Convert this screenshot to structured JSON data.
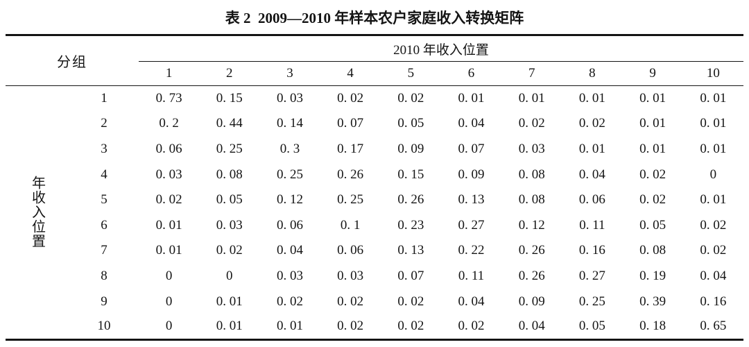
{
  "page": {
    "background": "#ffffff",
    "text_color": "#141414",
    "rule_color": "#141414"
  },
  "title": "表 2  2009—2010 年样本农户家庭收入转换矩阵",
  "table": {
    "group_header": "分组",
    "col_span_header": "2010 年收入位置",
    "row_axis_label": "年收入位置",
    "column_labels": [
      "1",
      "2",
      "3",
      "4",
      "5",
      "6",
      "7",
      "8",
      "9",
      "10"
    ],
    "rows": [
      {
        "label": "1",
        "values": [
          "0. 73",
          "0. 15",
          "0. 03",
          "0. 02",
          "0. 02",
          "0. 01",
          "0. 01",
          "0. 01",
          "0. 01",
          "0. 01"
        ]
      },
      {
        "label": "2",
        "values": [
          "0. 2",
          "0. 44",
          "0. 14",
          "0. 07",
          "0. 05",
          "0. 04",
          "0. 02",
          "0. 02",
          "0. 01",
          "0. 01"
        ]
      },
      {
        "label": "3",
        "values": [
          "0. 06",
          "0. 25",
          "0. 3",
          "0. 17",
          "0. 09",
          "0. 07",
          "0. 03",
          "0. 01",
          "0. 01",
          "0. 01"
        ]
      },
      {
        "label": "4",
        "values": [
          "0. 03",
          "0. 08",
          "0. 25",
          "0. 26",
          "0. 15",
          "0. 09",
          "0. 08",
          "0. 04",
          "0. 02",
          "0"
        ]
      },
      {
        "label": "5",
        "values": [
          "0. 02",
          "0. 05",
          "0. 12",
          "0. 25",
          "0. 26",
          "0. 13",
          "0. 08",
          "0. 06",
          "0. 02",
          "0. 01"
        ]
      },
      {
        "label": "6",
        "values": [
          "0. 01",
          "0. 03",
          "0. 06",
          "0. 1",
          "0. 23",
          "0. 27",
          "0. 12",
          "0. 11",
          "0. 05",
          "0. 02"
        ]
      },
      {
        "label": "7",
        "values": [
          "0. 01",
          "0. 02",
          "0. 04",
          "0. 06",
          "0. 13",
          "0. 22",
          "0. 26",
          "0. 16",
          "0. 08",
          "0. 02"
        ]
      },
      {
        "label": "8",
        "values": [
          "0",
          "0",
          "0. 03",
          "0. 03",
          "0. 07",
          "0. 11",
          "0. 26",
          "0. 27",
          "0. 19",
          "0. 04"
        ]
      },
      {
        "label": "9",
        "values": [
          "0",
          "0. 01",
          "0. 02",
          "0. 02",
          "0. 02",
          "0. 04",
          "0. 09",
          "0. 25",
          "0. 39",
          "0. 16"
        ]
      },
      {
        "label": "10",
        "values": [
          "0",
          "0. 01",
          "0. 01",
          "0. 02",
          "0. 02",
          "0. 02",
          "0. 04",
          "0. 05",
          "0. 18",
          "0. 65"
        ]
      }
    ]
  },
  "chart_data": {
    "type": "table",
    "title": "表 2 2009—2010 年样本农户家庭收入转换矩阵",
    "row_axis_label": "年收入位置",
    "col_axis_label": "2010 年收入位置",
    "corner_label": "分组",
    "row_labels": [
      1,
      2,
      3,
      4,
      5,
      6,
      7,
      8,
      9,
      10
    ],
    "col_labels": [
      1,
      2,
      3,
      4,
      5,
      6,
      7,
      8,
      9,
      10
    ],
    "matrix": [
      [
        0.73,
        0.15,
        0.03,
        0.02,
        0.02,
        0.01,
        0.01,
        0.01,
        0.01,
        0.01
      ],
      [
        0.2,
        0.44,
        0.14,
        0.07,
        0.05,
        0.04,
        0.02,
        0.02,
        0.01,
        0.01
      ],
      [
        0.06,
        0.25,
        0.3,
        0.17,
        0.09,
        0.07,
        0.03,
        0.01,
        0.01,
        0.01
      ],
      [
        0.03,
        0.08,
        0.25,
        0.26,
        0.15,
        0.09,
        0.08,
        0.04,
        0.02,
        0
      ],
      [
        0.02,
        0.05,
        0.12,
        0.25,
        0.26,
        0.13,
        0.08,
        0.06,
        0.02,
        0.01
      ],
      [
        0.01,
        0.03,
        0.06,
        0.1,
        0.23,
        0.27,
        0.12,
        0.11,
        0.05,
        0.02
      ],
      [
        0.01,
        0.02,
        0.04,
        0.06,
        0.13,
        0.22,
        0.26,
        0.16,
        0.08,
        0.02
      ],
      [
        0,
        0,
        0.03,
        0.03,
        0.07,
        0.11,
        0.26,
        0.27,
        0.19,
        0.04
      ],
      [
        0,
        0.01,
        0.02,
        0.02,
        0.02,
        0.04,
        0.09,
        0.25,
        0.39,
        0.16
      ],
      [
        0,
        0.01,
        0.01,
        0.02,
        0.02,
        0.02,
        0.04,
        0.05,
        0.18,
        0.65
      ]
    ]
  }
}
